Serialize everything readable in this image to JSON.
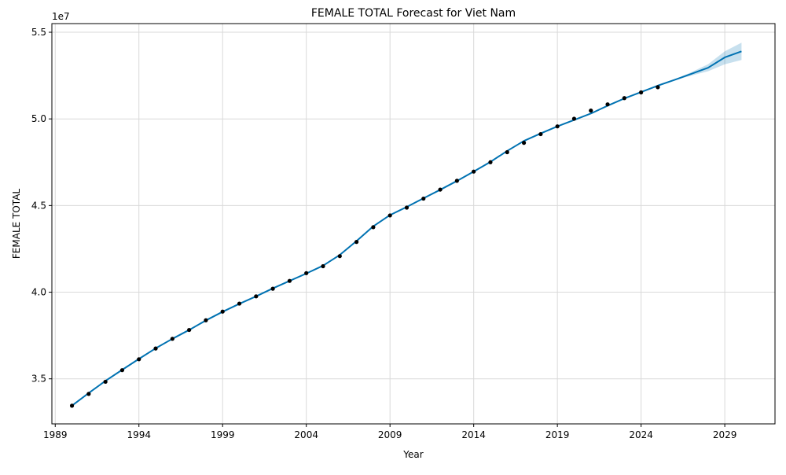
{
  "chart_data": {
    "type": "line",
    "title": "FEMALE TOTAL Forecast for Viet Nam",
    "xlabel": "Year",
    "ylabel": "FEMALE TOTAL",
    "y_offset_label": "1e7",
    "xlim": [
      1988.8,
      2032.0
    ],
    "ylim": [
      32400000,
      55500000
    ],
    "x_ticks": [
      1989,
      1994,
      1999,
      2004,
      2009,
      2014,
      2019,
      2024,
      2029
    ],
    "y_ticks": [
      35000000,
      40000000,
      45000000,
      50000000,
      55000000
    ],
    "y_tick_labels": [
      "3.5",
      "4.0",
      "4.5",
      "5.0",
      "5.5"
    ],
    "grid": true,
    "colors": {
      "forecast_line": "#0072B2",
      "uncertainty_band": "#0072B2",
      "observed_points": "#000000",
      "grid": "#d9d9d9"
    },
    "series": [
      {
        "kind": "observed",
        "x": [
          1990,
          1991,
          1992,
          1993,
          1994,
          1995,
          1996,
          1997,
          1998,
          1999,
          2000,
          2001,
          2002,
          2003,
          2004,
          2005,
          2006,
          2007,
          2008,
          2009,
          2010,
          2011,
          2012,
          2013,
          2014,
          2015,
          2016,
          2017,
          2018,
          2019,
          2020,
          2021,
          2022,
          2023,
          2024,
          2025
        ],
        "values": [
          33450000,
          34130000,
          34830000,
          35500000,
          36130000,
          36750000,
          37310000,
          37820000,
          38380000,
          38880000,
          39340000,
          39760000,
          40200000,
          40650000,
          41100000,
          41500000,
          42080000,
          42900000,
          43750000,
          44430000,
          44880000,
          45400000,
          45920000,
          46430000,
          46960000,
          47500000,
          48080000,
          48620000,
          49120000,
          49570000,
          50010000,
          50480000,
          50840000,
          51200000,
          51530000,
          51830000
        ]
      },
      {
        "kind": "forecast",
        "x": [
          1990,
          1991,
          1992,
          1993,
          1994,
          1995,
          1996,
          1997,
          1998,
          1999,
          2000,
          2001,
          2002,
          2003,
          2004,
          2005,
          2006,
          2007,
          2008,
          2009,
          2010,
          2011,
          2012,
          2013,
          2014,
          2015,
          2016,
          2017,
          2018,
          2019,
          2020,
          2021,
          2022,
          2023,
          2024,
          2025,
          2026,
          2027,
          2028,
          2029,
          2030
        ],
        "values": [
          33450000,
          34180000,
          34880000,
          35520000,
          36150000,
          36760000,
          37310000,
          37820000,
          38370000,
          38870000,
          39330000,
          39760000,
          40220000,
          40650000,
          41080000,
          41530000,
          42150000,
          42950000,
          43800000,
          44450000,
          44920000,
          45420000,
          45910000,
          46420000,
          46960000,
          47520000,
          48150000,
          48730000,
          49160000,
          49570000,
          49940000,
          50310000,
          50760000,
          51180000,
          51550000,
          51920000,
          52250000,
          52600000,
          52950000,
          53550000,
          53900000
        ],
        "upper": [
          33450000,
          34180000,
          34880000,
          35520000,
          36150000,
          36760000,
          37310000,
          37820000,
          38370000,
          38870000,
          39330000,
          39760000,
          40220000,
          40650000,
          41080000,
          41530000,
          42150000,
          42950000,
          43800000,
          44450000,
          44920000,
          45420000,
          45910000,
          46420000,
          46960000,
          47520000,
          48150000,
          48730000,
          49160000,
          49570000,
          49940000,
          50310000,
          50760000,
          51180000,
          51550000,
          51920000,
          52280000,
          52700000,
          53150000,
          53900000,
          54400000
        ],
        "lower": [
          33450000,
          34180000,
          34880000,
          35520000,
          36150000,
          36760000,
          37310000,
          37820000,
          38370000,
          38870000,
          39330000,
          39760000,
          40220000,
          40650000,
          41080000,
          41530000,
          42150000,
          42950000,
          43800000,
          44450000,
          44920000,
          45420000,
          45910000,
          46420000,
          46960000,
          47520000,
          48150000,
          48730000,
          49160000,
          49570000,
          49940000,
          50310000,
          50760000,
          51180000,
          51550000,
          51920000,
          52220000,
          52500000,
          52750000,
          53150000,
          53400000
        ]
      }
    ]
  }
}
